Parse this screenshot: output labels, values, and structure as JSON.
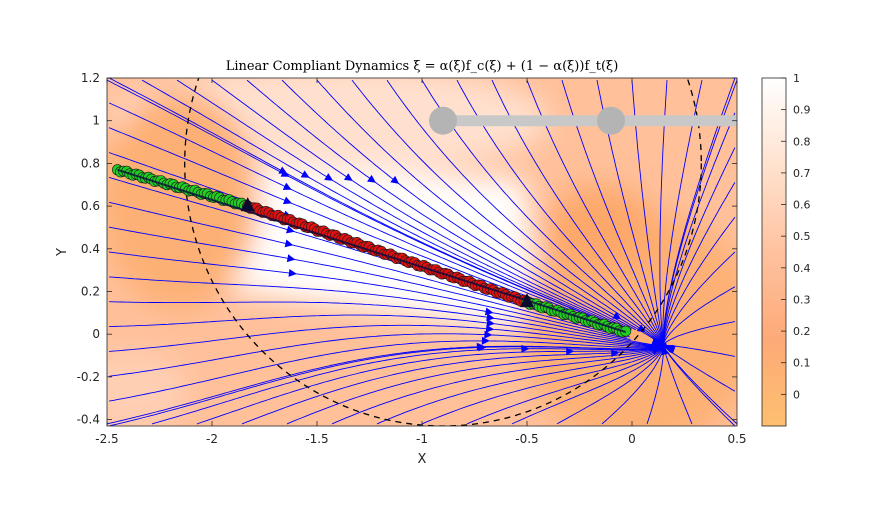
{
  "chart_data": {
    "type": "scatter",
    "title": "Linear Compliant Dynamics ξ̇ = α(ξ)f_c(ξ) + (1 − α(ξ))f_t(ξ)",
    "xlabel": "X",
    "ylabel": "Y",
    "xlim": [
      -2.5,
      0.5
    ],
    "ylim": [
      -0.43,
      1.2
    ],
    "x_ticks": [
      "-2.5",
      "-2",
      "-1.5",
      "-1",
      "-0.5",
      "0",
      "0.5"
    ],
    "y_ticks": [
      "-0.4",
      "-0.2",
      "0",
      "0.2",
      "0.4",
      "0.6",
      "0.8",
      "1",
      "1.2"
    ],
    "colorbar": {
      "range": [
        -0.1,
        1.0
      ],
      "ticks": [
        "0",
        "0.1",
        "0.2",
        "0.3",
        "0.4",
        "0.5",
        "0.6",
        "0.7",
        "0.8",
        "0.9",
        "1"
      ],
      "low_color": "#fdbf6f",
      "high_color": "#ffffff"
    },
    "workspace_circle": {
      "center": [
        -0.9,
        0.8
      ],
      "radius": 1.23,
      "style": "dashed"
    },
    "constraint_bar": {
      "y": 1.0,
      "x": [
        -0.9,
        0.5
      ],
      "color": "#c8c8c8"
    },
    "joints": [
      [
        -0.9,
        1.0
      ],
      [
        -0.1,
        1.0
      ]
    ],
    "triangles": [
      [
        -1.83,
        0.6
      ],
      [
        -0.5,
        0.15
      ]
    ],
    "series": [
      {
        "name": "",
        "color": "#22cc22",
        "segment": [
          [
            -2.45,
            0.77
          ],
          [
            -1.83,
            0.6
          ]
        ]
      },
      {
        "name": "",
        "color": "#e01010",
        "segment": [
          [
            -1.83,
            0.6
          ],
          [
            -0.5,
            0.15
          ]
        ]
      },
      {
        "name": "",
        "color": "#22cc22",
        "segment": [
          [
            -0.5,
            0.15
          ],
          [
            -0.03,
            0.01
          ]
        ]
      }
    ],
    "streamline_color": "#0000ff",
    "grid": false
  }
}
